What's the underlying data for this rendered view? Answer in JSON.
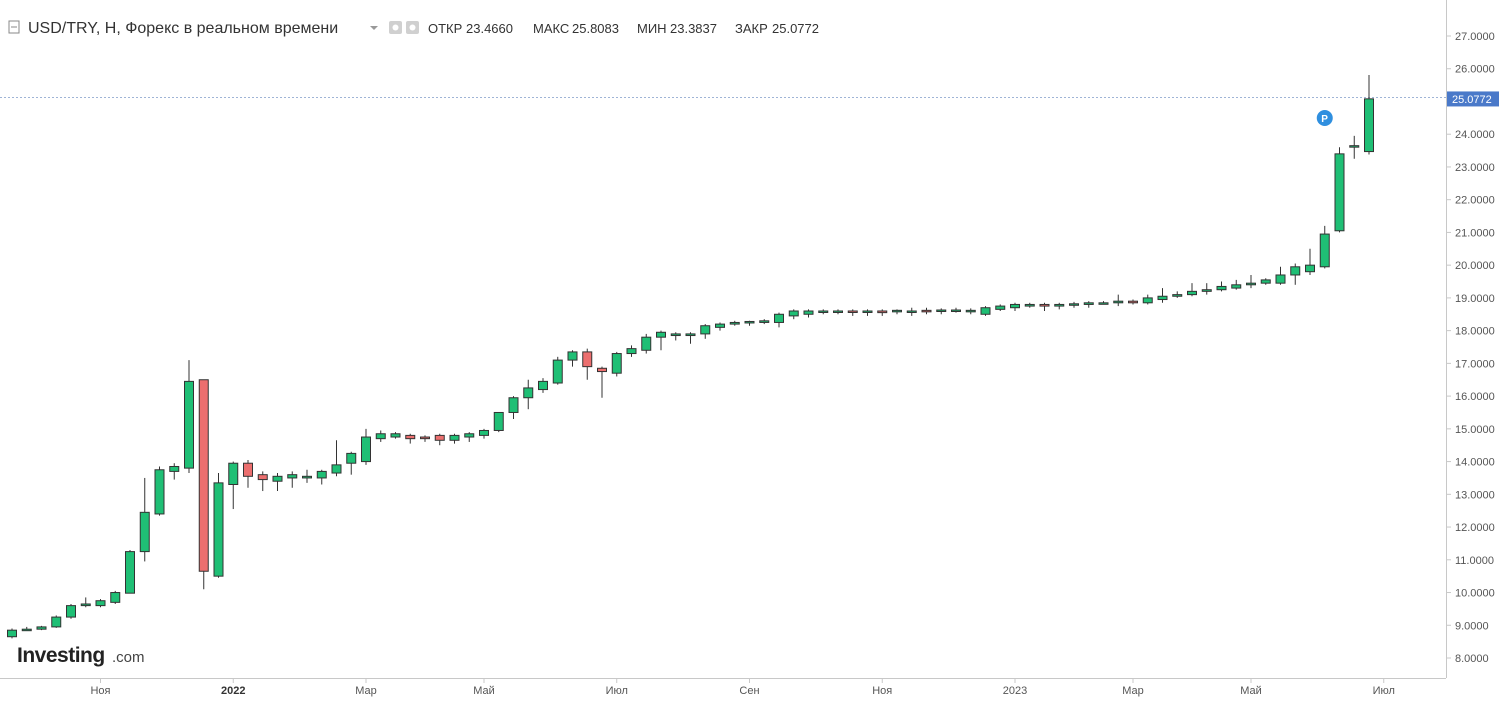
{
  "header": {
    "title": "USD/TRY, H, Форекс в реальном времени",
    "open_label": "ОТКР",
    "open_value": "23.4660",
    "high_label": "МАКС",
    "high_value": "25.8083",
    "low_label": "МИН",
    "low_value": "23.3837",
    "close_label": "ЗАКР",
    "close_value": "25.0772"
  },
  "logo": {
    "main": "Investing",
    "sub": ".com"
  },
  "colors": {
    "up": "#1fbf75",
    "down": "#ec6f6f",
    "price_tag": "#4a79c9",
    "marker": "#2f8fdf"
  },
  "chart_data": {
    "type": "candlestick",
    "title": "USD/TRY, H, Форекс в реальном времени",
    "ylim": [
      7.5,
      27.5
    ],
    "yticks": [
      "8.0000",
      "9.0000",
      "10.0000",
      "11.0000",
      "12.0000",
      "13.0000",
      "14.0000",
      "15.0000",
      "16.0000",
      "17.0000",
      "18.0000",
      "19.0000",
      "20.0000",
      "21.0000",
      "22.0000",
      "23.0000",
      "24.0000",
      "26.0000",
      "27.0000"
    ],
    "xticks": [
      {
        "label": "Ноя",
        "i": 6,
        "bold": false
      },
      {
        "label": "2022",
        "i": 15,
        "bold": true
      },
      {
        "label": "Мар",
        "i": 24,
        "bold": false
      },
      {
        "label": "Май",
        "i": 32,
        "bold": false
      },
      {
        "label": "Июл",
        "i": 41,
        "bold": false
      },
      {
        "label": "Сен",
        "i": 50,
        "bold": false
      },
      {
        "label": "Ноя",
        "i": 59,
        "bold": false
      },
      {
        "label": "2023",
        "i": 68,
        "bold": false
      },
      {
        "label": "Мар",
        "i": 76,
        "bold": false
      },
      {
        "label": "Май",
        "i": 84,
        "bold": false
      },
      {
        "label": "Июл",
        "i": 93,
        "bold": false
      }
    ],
    "last_price": "25.0772",
    "marker_label": "P",
    "marker_index": 89,
    "candles": [
      [
        8.65,
        8.85,
        8.6,
        8.9
      ],
      [
        8.85,
        8.88,
        8.83,
        8.95
      ],
      [
        8.88,
        8.95,
        8.85,
        8.98
      ],
      [
        8.95,
        9.25,
        8.92,
        9.3
      ],
      [
        9.25,
        9.6,
        9.2,
        9.65
      ],
      [
        9.6,
        9.65,
        9.55,
        9.85
      ],
      [
        9.6,
        9.75,
        9.55,
        9.8
      ],
      [
        9.7,
        10.0,
        9.65,
        10.05
      ],
      [
        9.98,
        11.25,
        9.98,
        11.3
      ],
      [
        11.25,
        12.45,
        10.95,
        13.5
      ],
      [
        12.4,
        13.75,
        12.35,
        13.85
      ],
      [
        13.7,
        13.85,
        13.45,
        13.95
      ],
      [
        13.8,
        16.45,
        13.65,
        17.1
      ],
      [
        16.5,
        10.65,
        10.1,
        16.5
      ],
      [
        10.5,
        13.35,
        10.45,
        13.65
      ],
      [
        13.3,
        13.95,
        12.55,
        14.0
      ],
      [
        13.95,
        13.55,
        13.2,
        14.05
      ],
      [
        13.6,
        13.45,
        13.1,
        13.7
      ],
      [
        13.4,
        13.55,
        13.1,
        13.65
      ],
      [
        13.5,
        13.6,
        13.2,
        13.7
      ],
      [
        13.5,
        13.55,
        13.35,
        13.75
      ],
      [
        13.5,
        13.7,
        13.3,
        13.75
      ],
      [
        13.65,
        13.9,
        13.55,
        14.65
      ],
      [
        13.95,
        14.25,
        13.6,
        14.3
      ],
      [
        14.0,
        14.75,
        13.9,
        15.0
      ],
      [
        14.7,
        14.85,
        14.6,
        14.95
      ],
      [
        14.75,
        14.85,
        14.7,
        14.9
      ],
      [
        14.8,
        14.7,
        14.55,
        14.85
      ],
      [
        14.75,
        14.7,
        14.6,
        14.8
      ],
      [
        14.8,
        14.65,
        14.5,
        14.85
      ],
      [
        14.65,
        14.8,
        14.55,
        14.85
      ],
      [
        14.75,
        14.85,
        14.6,
        14.9
      ],
      [
        14.8,
        14.95,
        14.7,
        15.0
      ],
      [
        14.95,
        15.5,
        14.9,
        15.5
      ],
      [
        15.5,
        15.95,
        15.3,
        16.0
      ],
      [
        15.95,
        16.25,
        15.6,
        16.5
      ],
      [
        16.2,
        16.45,
        16.1,
        16.55
      ],
      [
        16.4,
        17.1,
        16.35,
        17.2
      ],
      [
        17.1,
        17.35,
        16.9,
        17.4
      ],
      [
        17.35,
        16.9,
        16.5,
        17.45
      ],
      [
        16.85,
        16.75,
        15.95,
        16.9
      ],
      [
        16.7,
        17.3,
        16.6,
        17.35
      ],
      [
        17.3,
        17.45,
        17.2,
        17.55
      ],
      [
        17.4,
        17.8,
        17.3,
        17.9
      ],
      [
        17.8,
        17.95,
        17.4,
        18.0
      ],
      [
        17.85,
        17.9,
        17.7,
        17.95
      ],
      [
        17.85,
        17.9,
        17.6,
        17.95
      ],
      [
        17.9,
        18.15,
        17.75,
        18.2
      ],
      [
        18.1,
        18.2,
        18.0,
        18.25
      ],
      [
        18.2,
        18.25,
        18.15,
        18.3
      ],
      [
        18.25,
        18.28,
        18.15,
        18.3
      ],
      [
        18.25,
        18.3,
        18.2,
        18.35
      ],
      [
        18.25,
        18.5,
        18.1,
        18.55
      ],
      [
        18.45,
        18.6,
        18.35,
        18.65
      ],
      [
        18.5,
        18.6,
        18.4,
        18.65
      ],
      [
        18.6,
        18.6,
        18.5,
        18.65
      ],
      [
        18.6,
        18.6,
        18.5,
        18.65
      ],
      [
        18.6,
        18.58,
        18.45,
        18.65
      ],
      [
        18.6,
        18.6,
        18.45,
        18.65
      ],
      [
        18.6,
        18.55,
        18.45,
        18.65
      ],
      [
        18.58,
        18.62,
        18.5,
        18.65
      ],
      [
        18.6,
        18.6,
        18.45,
        18.7
      ],
      [
        18.62,
        18.6,
        18.5,
        18.7
      ],
      [
        18.6,
        18.63,
        18.5,
        18.68
      ],
      [
        18.62,
        18.63,
        18.55,
        18.7
      ],
      [
        18.6,
        18.62,
        18.5,
        18.68
      ],
      [
        18.5,
        18.7,
        18.45,
        18.75
      ],
      [
        18.65,
        18.75,
        18.6,
        18.8
      ],
      [
        18.7,
        18.8,
        18.6,
        18.85
      ],
      [
        18.75,
        18.8,
        18.7,
        18.85
      ],
      [
        18.8,
        18.75,
        18.6,
        18.85
      ],
      [
        18.75,
        18.8,
        18.65,
        18.85
      ],
      [
        18.8,
        18.82,
        18.7,
        18.88
      ],
      [
        18.8,
        18.85,
        18.7,
        18.9
      ],
      [
        18.85,
        18.85,
        18.8,
        18.9
      ],
      [
        18.85,
        18.9,
        18.75,
        19.1
      ],
      [
        18.9,
        18.85,
        18.8,
        18.95
      ],
      [
        18.85,
        19.0,
        18.8,
        19.1
      ],
      [
        18.95,
        19.05,
        18.85,
        19.3
      ],
      [
        19.05,
        19.1,
        19.0,
        19.2
      ],
      [
        19.1,
        19.2,
        19.05,
        19.45
      ],
      [
        19.2,
        19.25,
        19.1,
        19.45
      ],
      [
        19.25,
        19.35,
        19.2,
        19.5
      ],
      [
        19.3,
        19.4,
        19.25,
        19.55
      ],
      [
        19.4,
        19.45,
        19.3,
        19.7
      ],
      [
        19.45,
        19.55,
        19.4,
        19.6
      ],
      [
        19.45,
        19.7,
        19.4,
        19.95
      ],
      [
        19.7,
        19.95,
        19.4,
        20.05
      ],
      [
        19.8,
        20.0,
        19.7,
        20.5
      ],
      [
        19.95,
        20.95,
        19.9,
        21.2
      ],
      [
        21.05,
        23.4,
        21.0,
        23.6
      ],
      [
        23.65,
        23.65,
        23.25,
        23.95
      ],
      [
        23.47,
        25.08,
        23.38,
        25.81
      ]
    ]
  }
}
